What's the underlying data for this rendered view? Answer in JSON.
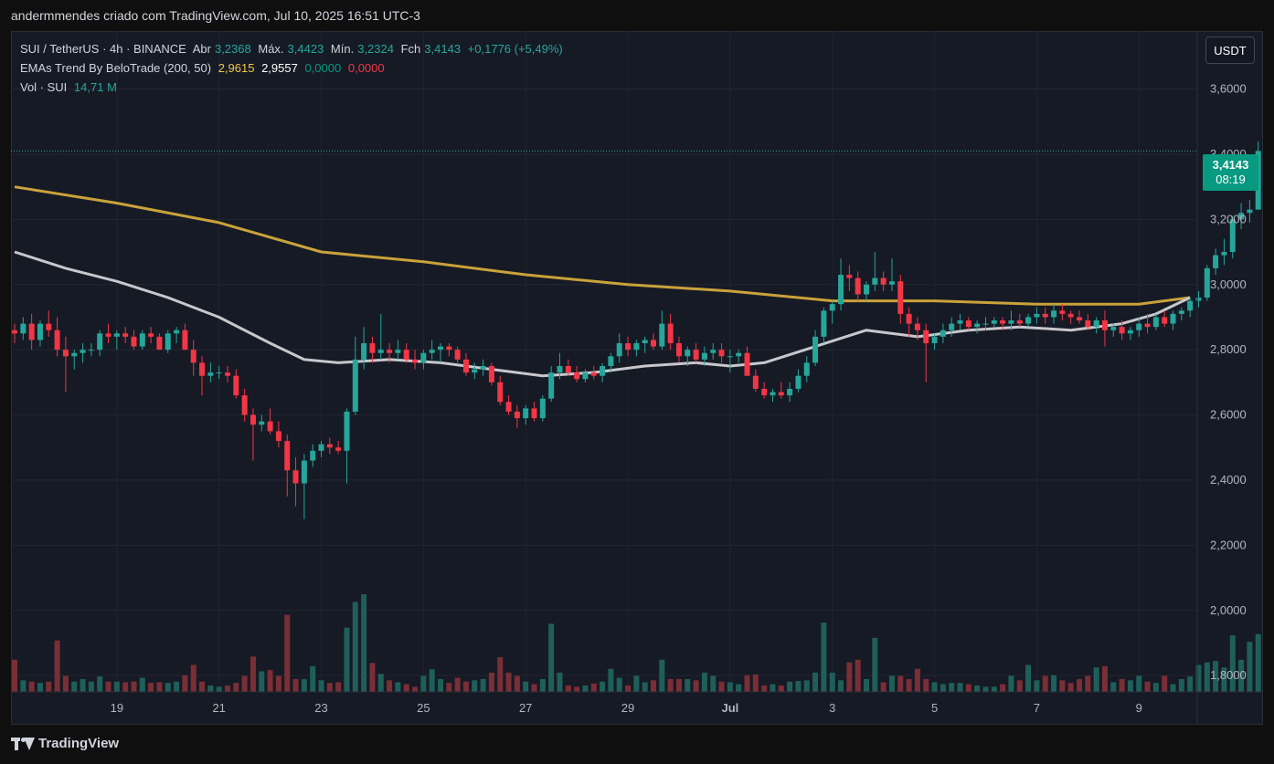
{
  "header": {
    "title": "andermmendes criado com TradingView.com, Jul 10, 2025 16:51 UTC-3"
  },
  "legend": {
    "symbol": "SUI / TetherUS · 4h · BINANCE",
    "open_label": "Abr",
    "open": "3,2368",
    "high_label": "Máx.",
    "high": "3,4423",
    "low_label": "Mín.",
    "low": "3,2324",
    "close_label": "Fch",
    "close": "3,4143",
    "change": "+0,1776 (+5,49%)",
    "ema_name": "EMAs Trend By BeloTrade (200, 50)",
    "ema200": "2,9615",
    "ema50": "2,9557",
    "ema_v3": "0,0000",
    "ema_v4": "0,0000",
    "vol_label": "Vol · SUI",
    "vol_value": "14,71 M"
  },
  "currency_button": "USDT",
  "last_price": {
    "price": "3,4143",
    "countdown": "08:19"
  },
  "footer": {
    "brand": "TradingView"
  },
  "colors": {
    "up": "#26a69a",
    "down": "#f23645",
    "ema200": "#c9a23a",
    "ema50": "#c7c7cc",
    "vol_up": "#1f5f5a",
    "vol_down": "#7a2e35"
  },
  "chart_data": {
    "type": "candlestick",
    "price_axis": {
      "min": 1.75,
      "max": 3.75,
      "ticks": [
        3.6,
        3.4,
        3.2,
        3.0,
        2.8,
        2.6,
        2.4,
        2.2,
        2.0,
        1.8
      ],
      "tick_labels": [
        "3,6000",
        "3,4000",
        "3,2000",
        "3,0000",
        "2,8000",
        "2,6000",
        "2,4000",
        "2,2000",
        "2,0000",
        "1,8000"
      ]
    },
    "x_axis": {
      "labels": [
        "19",
        "21",
        "23",
        "25",
        "27",
        "29",
        "Jul",
        "3",
        "5",
        "7",
        "9"
      ],
      "label_candle_index": [
        12,
        24,
        36,
        48,
        60,
        72,
        84,
        96,
        108,
        120,
        132
      ]
    },
    "volume_scale_max": 27,
    "candles": [
      [
        2.86,
        2.88,
        2.82,
        2.85,
        5.0
      ],
      [
        2.85,
        2.9,
        2.83,
        2.88,
        1.8
      ],
      [
        2.88,
        2.91,
        2.8,
        2.83,
        1.6
      ],
      [
        2.83,
        2.89,
        2.81,
        2.88,
        1.4
      ],
      [
        2.88,
        2.92,
        2.84,
        2.86,
        1.6
      ],
      [
        2.86,
        2.9,
        2.78,
        2.8,
        8.0
      ],
      [
        2.8,
        2.84,
        2.67,
        2.78,
        2.5
      ],
      [
        2.78,
        2.8,
        2.74,
        2.79,
        1.6
      ],
      [
        2.79,
        2.82,
        2.76,
        2.8,
        2.0
      ],
      [
        2.8,
        2.82,
        2.78,
        2.8,
        1.6
      ],
      [
        2.8,
        2.86,
        2.78,
        2.85,
        2.4
      ],
      [
        2.85,
        2.88,
        2.82,
        2.84,
        1.6
      ],
      [
        2.84,
        2.86,
        2.8,
        2.85,
        1.6
      ],
      [
        2.85,
        2.87,
        2.82,
        2.84,
        1.5
      ],
      [
        2.84,
        2.86,
        2.8,
        2.81,
        1.6
      ],
      [
        2.81,
        2.86,
        2.8,
        2.85,
        2.2
      ],
      [
        2.85,
        2.87,
        2.82,
        2.84,
        1.4
      ],
      [
        2.84,
        2.85,
        2.8,
        2.8,
        1.5
      ],
      [
        2.8,
        2.86,
        2.79,
        2.85,
        1.4
      ],
      [
        2.85,
        2.87,
        2.82,
        2.86,
        1.6
      ],
      [
        2.86,
        2.88,
        2.8,
        2.8,
        2.6
      ],
      [
        2.8,
        2.83,
        2.72,
        2.76,
        4.2
      ],
      [
        2.76,
        2.78,
        2.66,
        2.72,
        1.6
      ],
      [
        2.72,
        2.76,
        2.7,
        2.73,
        1.0
      ],
      [
        2.73,
        2.75,
        2.71,
        2.73,
        0.8
      ],
      [
        2.73,
        2.75,
        2.7,
        2.72,
        1.0
      ],
      [
        2.72,
        2.74,
        2.65,
        2.66,
        1.4
      ],
      [
        2.66,
        2.68,
        2.58,
        2.6,
        2.5
      ],
      [
        2.6,
        2.62,
        2.46,
        2.57,
        5.5
      ],
      [
        2.57,
        2.6,
        2.55,
        2.58,
        3.2
      ],
      [
        2.58,
        2.62,
        2.54,
        2.55,
        3.4
      ],
      [
        2.55,
        2.58,
        2.5,
        2.52,
        2.5
      ],
      [
        2.52,
        2.54,
        2.35,
        2.43,
        12.0
      ],
      [
        2.43,
        2.47,
        2.32,
        2.39,
        2.0
      ],
      [
        2.39,
        2.48,
        2.28,
        2.46,
        2.0
      ],
      [
        2.46,
        2.51,
        2.44,
        2.49,
        4.0
      ],
      [
        2.49,
        2.52,
        2.47,
        2.51,
        1.8
      ],
      [
        2.51,
        2.53,
        2.48,
        2.5,
        1.4
      ],
      [
        2.5,
        2.52,
        2.48,
        2.49,
        1.5
      ],
      [
        2.49,
        2.62,
        2.39,
        2.61,
        10.0
      ],
      [
        2.61,
        2.84,
        2.6,
        2.77,
        14.0
      ],
      [
        2.77,
        2.87,
        2.74,
        2.82,
        15.2
      ],
      [
        2.82,
        2.84,
        2.76,
        2.79,
        4.5
      ],
      [
        2.79,
        2.91,
        2.77,
        2.8,
        2.8
      ],
      [
        2.8,
        2.82,
        2.76,
        2.79,
        1.8
      ],
      [
        2.79,
        2.83,
        2.77,
        2.8,
        1.5
      ],
      [
        2.8,
        2.82,
        2.76,
        2.77,
        1.2
      ],
      [
        2.77,
        2.8,
        2.74,
        2.76,
        0.8
      ],
      [
        2.76,
        2.8,
        2.74,
        2.79,
        2.5
      ],
      [
        2.79,
        2.83,
        2.77,
        2.8,
        3.5
      ],
      [
        2.8,
        2.82,
        2.76,
        2.81,
        2.0
      ],
      [
        2.81,
        2.82,
        2.78,
        2.8,
        1.4
      ],
      [
        2.8,
        2.81,
        2.76,
        2.77,
        2.2
      ],
      [
        2.77,
        2.79,
        2.72,
        2.73,
        1.6
      ],
      [
        2.73,
        2.76,
        2.71,
        2.74,
        1.8
      ],
      [
        2.74,
        2.77,
        2.72,
        2.75,
        2.0
      ],
      [
        2.75,
        2.76,
        2.69,
        2.7,
        3.0
      ],
      [
        2.7,
        2.72,
        2.63,
        2.64,
        5.4
      ],
      [
        2.64,
        2.66,
        2.6,
        2.61,
        3.0
      ],
      [
        2.61,
        2.63,
        2.56,
        2.59,
        2.5
      ],
      [
        2.59,
        2.63,
        2.57,
        2.62,
        1.6
      ],
      [
        2.62,
        2.64,
        2.58,
        2.59,
        1.2
      ],
      [
        2.59,
        2.66,
        2.58,
        2.65,
        2.0
      ],
      [
        2.65,
        2.75,
        2.64,
        2.73,
        10.6
      ],
      [
        2.73,
        2.79,
        2.71,
        2.75,
        3.0
      ],
      [
        2.75,
        2.77,
        2.72,
        2.73,
        1.0
      ],
      [
        2.73,
        2.75,
        2.7,
        2.71,
        0.8
      ],
      [
        2.71,
        2.74,
        2.7,
        2.73,
        1.0
      ],
      [
        2.73,
        2.75,
        2.71,
        2.72,
        1.3
      ],
      [
        2.72,
        2.76,
        2.7,
        2.75,
        1.6
      ],
      [
        2.75,
        2.79,
        2.73,
        2.78,
        3.6
      ],
      [
        2.78,
        2.85,
        2.76,
        2.82,
        2.2
      ],
      [
        2.82,
        2.84,
        2.78,
        2.8,
        1.0
      ],
      [
        2.8,
        2.83,
        2.78,
        2.82,
        2.5
      ],
      [
        2.82,
        2.84,
        2.79,
        2.83,
        1.5
      ],
      [
        2.83,
        2.85,
        2.8,
        2.81,
        1.8
      ],
      [
        2.81,
        2.92,
        2.8,
        2.88,
        5.0
      ],
      [
        2.88,
        2.91,
        2.8,
        2.82,
        2.0
      ],
      [
        2.82,
        2.84,
        2.76,
        2.78,
        2.0
      ],
      [
        2.78,
        2.81,
        2.75,
        2.8,
        2.0
      ],
      [
        2.8,
        2.82,
        2.76,
        2.77,
        1.8
      ],
      [
        2.77,
        2.81,
        2.75,
        2.79,
        3.0
      ],
      [
        2.79,
        2.82,
        2.77,
        2.8,
        2.5
      ],
      [
        2.8,
        2.82,
        2.76,
        2.78,
        1.6
      ],
      [
        2.78,
        2.8,
        2.73,
        2.78,
        1.5
      ],
      [
        2.78,
        2.8,
        2.76,
        2.79,
        1.2
      ],
      [
        2.79,
        2.81,
        2.72,
        2.72,
        2.6
      ],
      [
        2.72,
        2.74,
        2.67,
        2.68,
        2.7
      ],
      [
        2.68,
        2.7,
        2.65,
        2.66,
        1.0
      ],
      [
        2.66,
        2.68,
        2.64,
        2.67,
        1.2
      ],
      [
        2.67,
        2.7,
        2.65,
        2.66,
        1.0
      ],
      [
        2.66,
        2.7,
        2.64,
        2.68,
        1.6
      ],
      [
        2.68,
        2.74,
        2.67,
        2.72,
        1.7
      ],
      [
        2.72,
        2.78,
        2.7,
        2.76,
        1.8
      ],
      [
        2.76,
        2.86,
        2.75,
        2.84,
        3.0
      ],
      [
        2.84,
        2.93,
        2.82,
        2.92,
        10.8
      ],
      [
        2.92,
        2.95,
        2.88,
        2.94,
        3.0
      ],
      [
        2.94,
        3.08,
        2.92,
        3.03,
        1.8
      ],
      [
        3.03,
        3.06,
        2.98,
        3.02,
        4.6
      ],
      [
        3.02,
        3.04,
        2.95,
        2.97,
        5.0
      ],
      [
        2.97,
        3.01,
        2.95,
        3.0,
        2.0
      ],
      [
        3.0,
        3.1,
        2.98,
        3.02,
        8.4
      ],
      [
        3.02,
        3.04,
        2.98,
        3.0,
        1.5
      ],
      [
        3.0,
        3.08,
        2.98,
        3.01,
        2.5
      ],
      [
        3.01,
        3.03,
        2.88,
        2.91,
        2.5
      ],
      [
        2.91,
        2.93,
        2.84,
        2.88,
        2.0
      ],
      [
        2.88,
        2.9,
        2.83,
        2.86,
        3.6
      ],
      [
        2.86,
        2.88,
        2.7,
        2.82,
        2.0
      ],
      [
        2.82,
        2.85,
        2.8,
        2.84,
        1.5
      ],
      [
        2.84,
        2.88,
        2.82,
        2.86,
        1.2
      ],
      [
        2.86,
        2.9,
        2.84,
        2.88,
        1.4
      ],
      [
        2.88,
        2.91,
        2.86,
        2.89,
        1.4
      ],
      [
        2.89,
        2.9,
        2.86,
        2.87,
        1.2
      ],
      [
        2.87,
        2.89,
        2.85,
        2.88,
        1.0
      ],
      [
        2.88,
        2.9,
        2.86,
        2.88,
        0.8
      ],
      [
        2.88,
        2.9,
        2.87,
        2.89,
        0.8
      ],
      [
        2.89,
        2.9,
        2.86,
        2.88,
        1.2
      ],
      [
        2.88,
        2.92,
        2.86,
        2.89,
        2.5
      ],
      [
        2.89,
        2.91,
        2.87,
        2.88,
        1.8
      ],
      [
        2.88,
        2.91,
        2.87,
        2.9,
        4.2
      ],
      [
        2.9,
        2.93,
        2.88,
        2.91,
        1.8
      ],
      [
        2.91,
        2.93,
        2.88,
        2.9,
        2.5
      ],
      [
        2.9,
        2.94,
        2.88,
        2.92,
        2.6
      ],
      [
        2.92,
        2.94,
        2.89,
        2.91,
        1.8
      ],
      [
        2.91,
        2.92,
        2.88,
        2.9,
        1.4
      ],
      [
        2.9,
        2.92,
        2.88,
        2.89,
        2.0
      ],
      [
        2.89,
        2.91,
        2.86,
        2.87,
        2.5
      ],
      [
        2.87,
        2.9,
        2.85,
        2.89,
        3.8
      ],
      [
        2.89,
        2.92,
        2.81,
        2.86,
        4.0
      ],
      [
        2.86,
        2.88,
        2.84,
        2.87,
        1.5
      ],
      [
        2.87,
        2.89,
        2.83,
        2.85,
        2.0
      ],
      [
        2.85,
        2.87,
        2.83,
        2.86,
        1.8
      ],
      [
        2.86,
        2.9,
        2.84,
        2.88,
        2.5
      ],
      [
        2.88,
        2.91,
        2.85,
        2.87,
        1.6
      ],
      [
        2.87,
        2.91,
        2.86,
        2.9,
        1.4
      ],
      [
        2.9,
        2.92,
        2.87,
        2.88,
        2.5
      ],
      [
        2.88,
        2.92,
        2.86,
        2.91,
        1.2
      ],
      [
        2.91,
        2.93,
        2.89,
        2.92,
        2.0
      ],
      [
        2.92,
        2.96,
        2.9,
        2.95,
        2.4
      ],
      [
        2.95,
        2.98,
        2.93,
        2.96,
        4.2
      ],
      [
        2.96,
        3.06,
        2.95,
        3.05,
        4.6
      ],
      [
        3.05,
        3.11,
        3.03,
        3.09,
        4.8
      ],
      [
        3.09,
        3.14,
        3.06,
        3.1,
        3.8
      ],
      [
        3.1,
        3.21,
        3.08,
        3.2,
        8.8
      ],
      [
        3.2,
        3.25,
        3.17,
        3.22,
        5.0
      ],
      [
        3.22,
        3.26,
        3.19,
        3.23,
        7.8
      ],
      [
        3.23,
        3.44,
        3.23,
        3.41,
        9.0
      ]
    ],
    "ema200": [
      [
        0,
        3.3
      ],
      [
        12,
        3.25
      ],
      [
        24,
        3.19
      ],
      [
        36,
        3.1
      ],
      [
        48,
        3.07
      ],
      [
        60,
        3.03
      ],
      [
        72,
        3.0
      ],
      [
        84,
        2.98
      ],
      [
        96,
        2.95
      ],
      [
        108,
        2.95
      ],
      [
        120,
        2.94
      ],
      [
        132,
        2.94
      ],
      [
        138,
        2.96
      ]
    ],
    "ema50": [
      [
        0,
        3.1
      ],
      [
        6,
        3.05
      ],
      [
        12,
        3.01
      ],
      [
        18,
        2.96
      ],
      [
        24,
        2.9
      ],
      [
        30,
        2.82
      ],
      [
        34,
        2.77
      ],
      [
        38,
        2.76
      ],
      [
        44,
        2.77
      ],
      [
        50,
        2.76
      ],
      [
        56,
        2.74
      ],
      [
        62,
        2.72
      ],
      [
        68,
        2.73
      ],
      [
        74,
        2.75
      ],
      [
        80,
        2.76
      ],
      [
        84,
        2.75
      ],
      [
        88,
        2.76
      ],
      [
        94,
        2.81
      ],
      [
        100,
        2.86
      ],
      [
        106,
        2.84
      ],
      [
        112,
        2.86
      ],
      [
        118,
        2.87
      ],
      [
        124,
        2.86
      ],
      [
        130,
        2.88
      ],
      [
        134,
        2.91
      ],
      [
        138,
        2.96
      ]
    ]
  }
}
